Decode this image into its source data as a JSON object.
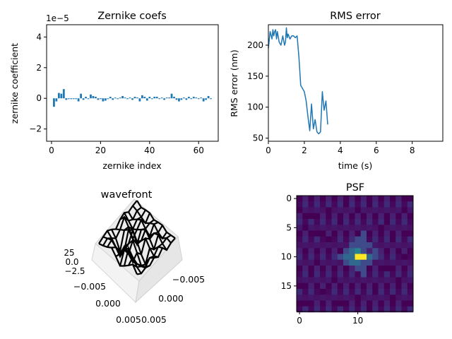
{
  "chart_data": [
    {
      "type": "bar",
      "title": "Zernike coefs",
      "xlabel": "zernike index",
      "ylabel": "zernike coefficient",
      "offset_text": "1e−5",
      "xlim": [
        -2,
        68
      ],
      "ylim": [
        -2.8,
        4.8
      ],
      "xticks": [
        0,
        20,
        40,
        60
      ],
      "yticks": [
        -2,
        0,
        2,
        4
      ],
      "ytick_labels": [
        "−2",
        "0",
        "2",
        "4"
      ],
      "color": "#1f77b4",
      "x": [
        1,
        2,
        3,
        4,
        5,
        6,
        7,
        8,
        9,
        10,
        11,
        12,
        13,
        14,
        15,
        16,
        17,
        18,
        19,
        20,
        21,
        22,
        23,
        24,
        25,
        26,
        27,
        28,
        29,
        30,
        31,
        32,
        33,
        34,
        35,
        36,
        37,
        38,
        39,
        40,
        41,
        42,
        43,
        44,
        45,
        46,
        47,
        48,
        49,
        50,
        51,
        52,
        53,
        54,
        55,
        56,
        57,
        58,
        59,
        60,
        61,
        62,
        63,
        64,
        65
      ],
      "values": [
        -0.55,
        -0.2,
        0.35,
        0.3,
        0.6,
        -0.1,
        -0.05,
        -0.05,
        -0.05,
        -0.05,
        -0.2,
        0.3,
        -0.1,
        0.1,
        -0.05,
        0.25,
        0.15,
        0.1,
        -0.1,
        -0.05,
        -0.2,
        -0.15,
        -0.05,
        0.1,
        -0.1,
        0.05,
        -0.05,
        0.05,
        0.15,
        0.05,
        -0.05,
        0.05,
        -0.1,
        0.1,
        0.05,
        -0.2,
        0.2,
        0.1,
        -0.15,
        0.1,
        -0.05,
        0.1,
        0.1,
        -0.05,
        0.05,
        -0.1,
        0.05,
        0.05,
        0.3,
        0.1,
        -0.1,
        -0.2,
        -0.1,
        0.05,
        -0.1,
        0.1,
        -0.05,
        0.1,
        0.05,
        -0.05,
        0.05,
        -0.2,
        -0.1,
        0.15,
        -0.05
      ]
    },
    {
      "type": "line",
      "title": "RMS error",
      "xlabel": "time (s)",
      "ylabel": "RMS error (nm)",
      "xlim": [
        0,
        9.7
      ],
      "ylim": [
        45,
        233
      ],
      "xticks": [
        0,
        2,
        4,
        6,
        8
      ],
      "yticks": [
        50,
        100,
        150,
        200
      ],
      "color": "#1f77b4",
      "x": [
        0,
        0.1,
        0.2,
        0.25,
        0.3,
        0.35,
        0.4,
        0.45,
        0.5,
        0.6,
        0.7,
        0.8,
        0.9,
        0.95,
        1.0,
        1.05,
        1.1,
        1.2,
        1.3,
        1.4,
        1.5,
        1.6,
        1.7,
        1.8,
        1.9,
        2.0,
        2.1,
        2.2,
        2.3,
        2.4,
        2.5,
        2.6,
        2.7,
        2.8,
        2.9,
        3.0,
        3.1,
        3.2,
        3.3
      ],
      "y": [
        195,
        222,
        210,
        225,
        215,
        222,
        225,
        210,
        222,
        205,
        200,
        215,
        200,
        205,
        228,
        212,
        218,
        210,
        215,
        215,
        212,
        215,
        180,
        135,
        130,
        125,
        110,
        85,
        62,
        105,
        65,
        80,
        60,
        57,
        60,
        125,
        95,
        110,
        72
      ]
    },
    {
      "type": "surface",
      "title": "wavefront",
      "tick_labels": [
        "−0.005",
        "0.000",
        "0.005",
        "−0.005",
        "0.000",
        "0.005",
        "25",
        "0.0",
        "−2.5"
      ],
      "z": [
        [
          0.0,
          0.4,
          0.9,
          1.6,
          0.6,
          -0.5,
          0.3,
          1.2,
          2.2,
          1.0
        ],
        [
          0.5,
          1.0,
          1.5,
          0.8,
          0.3,
          1.9,
          3.0,
          2.0,
          0.8,
          0.3
        ],
        [
          0.9,
          0.2,
          -0.8,
          -1.9,
          0.9,
          0.2,
          -0.6,
          -0.2,
          0.1,
          0.6
        ],
        [
          0.3,
          -0.7,
          -2.5,
          -1.6,
          0.6,
          2.1,
          0.4,
          -1.4,
          -0.9,
          0.2
        ],
        [
          -0.5,
          0.2,
          0.9,
          1.8,
          2.5,
          1.0,
          -0.8,
          -2.0,
          0.1,
          0.9
        ],
        [
          0.6,
          1.9,
          0.7,
          -0.9,
          -1.2,
          0.3,
          1.6,
          0.4,
          -0.4,
          0.2
        ],
        [
          1.1,
          0.3,
          -0.6,
          0.1,
          0.9,
          1.7,
          0.6,
          -0.7,
          0.6,
          1.2
        ],
        [
          0.4,
          -0.3,
          0.5,
          1.2,
          0.2,
          -0.5,
          0.9,
          1.4,
          0.4,
          -0.1
        ],
        [
          0.8,
          0.6,
          0.1,
          -0.3,
          0.5,
          1.1,
          0.2,
          -0.2,
          0.7,
          0.5
        ],
        [
          1.0,
          0.4,
          0.7,
          0.9,
          0.3,
          0.6,
          0.8,
          0.2,
          0.4,
          0.6
        ]
      ]
    },
    {
      "type": "heatmap",
      "title": "PSF",
      "xticks": [
        0,
        10
      ],
      "yticks": [
        0,
        5,
        10,
        15
      ],
      "colors": [
        "#440154",
        "#482878",
        "#3e4a89",
        "#31688e",
        "#26828e",
        "#fde725"
      ],
      "grid": [
        [
          1,
          1,
          1,
          1,
          1,
          1,
          0,
          1,
          1,
          1,
          1,
          1,
          1,
          1,
          1,
          1,
          0,
          1,
          1,
          0
        ],
        [
          1,
          1,
          1,
          1,
          1,
          1,
          1,
          1,
          0,
          1,
          1,
          1,
          0,
          1,
          1,
          1,
          1,
          1,
          1,
          1
        ],
        [
          0,
          1,
          1,
          1,
          1,
          0,
          1,
          1,
          1,
          1,
          0,
          1,
          1,
          1,
          1,
          1,
          1,
          1,
          0,
          1
        ],
        [
          1,
          1,
          0,
          1,
          1,
          1,
          1,
          1,
          1,
          1,
          1,
          0,
          1,
          1,
          1,
          1,
          1,
          0,
          1,
          1
        ],
        [
          1,
          1,
          1,
          1,
          1,
          1,
          1,
          0,
          1,
          1,
          1,
          1,
          1,
          1,
          1,
          0,
          1,
          1,
          1,
          1
        ],
        [
          1,
          0,
          1,
          1,
          1,
          1,
          1,
          1,
          1,
          1,
          1,
          1,
          1,
          1,
          0,
          1,
          1,
          1,
          1,
          1
        ],
        [
          1,
          1,
          1,
          0,
          1,
          1,
          1,
          1,
          1,
          1,
          1,
          2,
          1,
          1,
          1,
          1,
          1,
          1,
          1,
          0
        ],
        [
          1,
          1,
          1,
          1,
          1,
          0,
          1,
          1,
          1,
          1,
          2,
          2,
          1,
          1,
          1,
          1,
          0,
          1,
          1,
          1
        ],
        [
          1,
          1,
          1,
          1,
          1,
          1,
          1,
          1,
          1,
          2,
          2,
          2,
          2,
          1,
          1,
          1,
          1,
          1,
          1,
          1
        ],
        [
          1,
          0,
          1,
          1,
          1,
          1,
          1,
          1,
          2,
          3,
          4,
          2,
          1,
          2,
          1,
          1,
          1,
          1,
          1,
          1
        ],
        [
          1,
          1,
          1,
          1,
          1,
          1,
          1,
          2,
          3,
          3,
          5,
          5,
          3,
          2,
          1,
          1,
          1,
          1,
          0,
          1
        ],
        [
          1,
          1,
          1,
          0,
          1,
          1,
          1,
          1,
          2,
          3,
          3,
          2,
          2,
          1,
          1,
          1,
          1,
          1,
          1,
          1
        ],
        [
          1,
          1,
          1,
          1,
          1,
          1,
          1,
          1,
          1,
          1,
          2,
          2,
          1,
          1,
          1,
          0,
          1,
          1,
          1,
          1
        ],
        [
          1,
          1,
          0,
          1,
          1,
          1,
          1,
          1,
          1,
          1,
          1,
          2,
          1,
          1,
          1,
          1,
          1,
          1,
          1,
          1
        ],
        [
          1,
          1,
          1,
          1,
          1,
          1,
          0,
          1,
          1,
          1,
          1,
          1,
          1,
          1,
          1,
          1,
          1,
          0,
          1,
          1
        ],
        [
          0,
          1,
          1,
          1,
          1,
          1,
          1,
          1,
          1,
          0,
          1,
          1,
          1,
          1,
          1,
          1,
          1,
          1,
          1,
          1
        ],
        [
          1,
          1,
          1,
          1,
          0,
          1,
          1,
          1,
          1,
          1,
          1,
          1,
          1,
          0,
          1,
          1,
          1,
          1,
          1,
          1
        ],
        [
          1,
          1,
          1,
          1,
          1,
          1,
          1,
          1,
          1,
          1,
          0,
          1,
          1,
          1,
          1,
          1,
          0,
          1,
          1,
          1
        ],
        [
          1,
          0,
          1,
          1,
          1,
          1,
          1,
          0,
          1,
          1,
          1,
          1,
          1,
          1,
          1,
          1,
          1,
          1,
          1,
          0
        ],
        [
          1,
          1,
          1,
          1,
          1,
          1,
          1,
          1,
          1,
          1,
          1,
          1,
          0,
          1,
          1,
          1,
          1,
          1,
          1,
          1
        ]
      ]
    }
  ]
}
